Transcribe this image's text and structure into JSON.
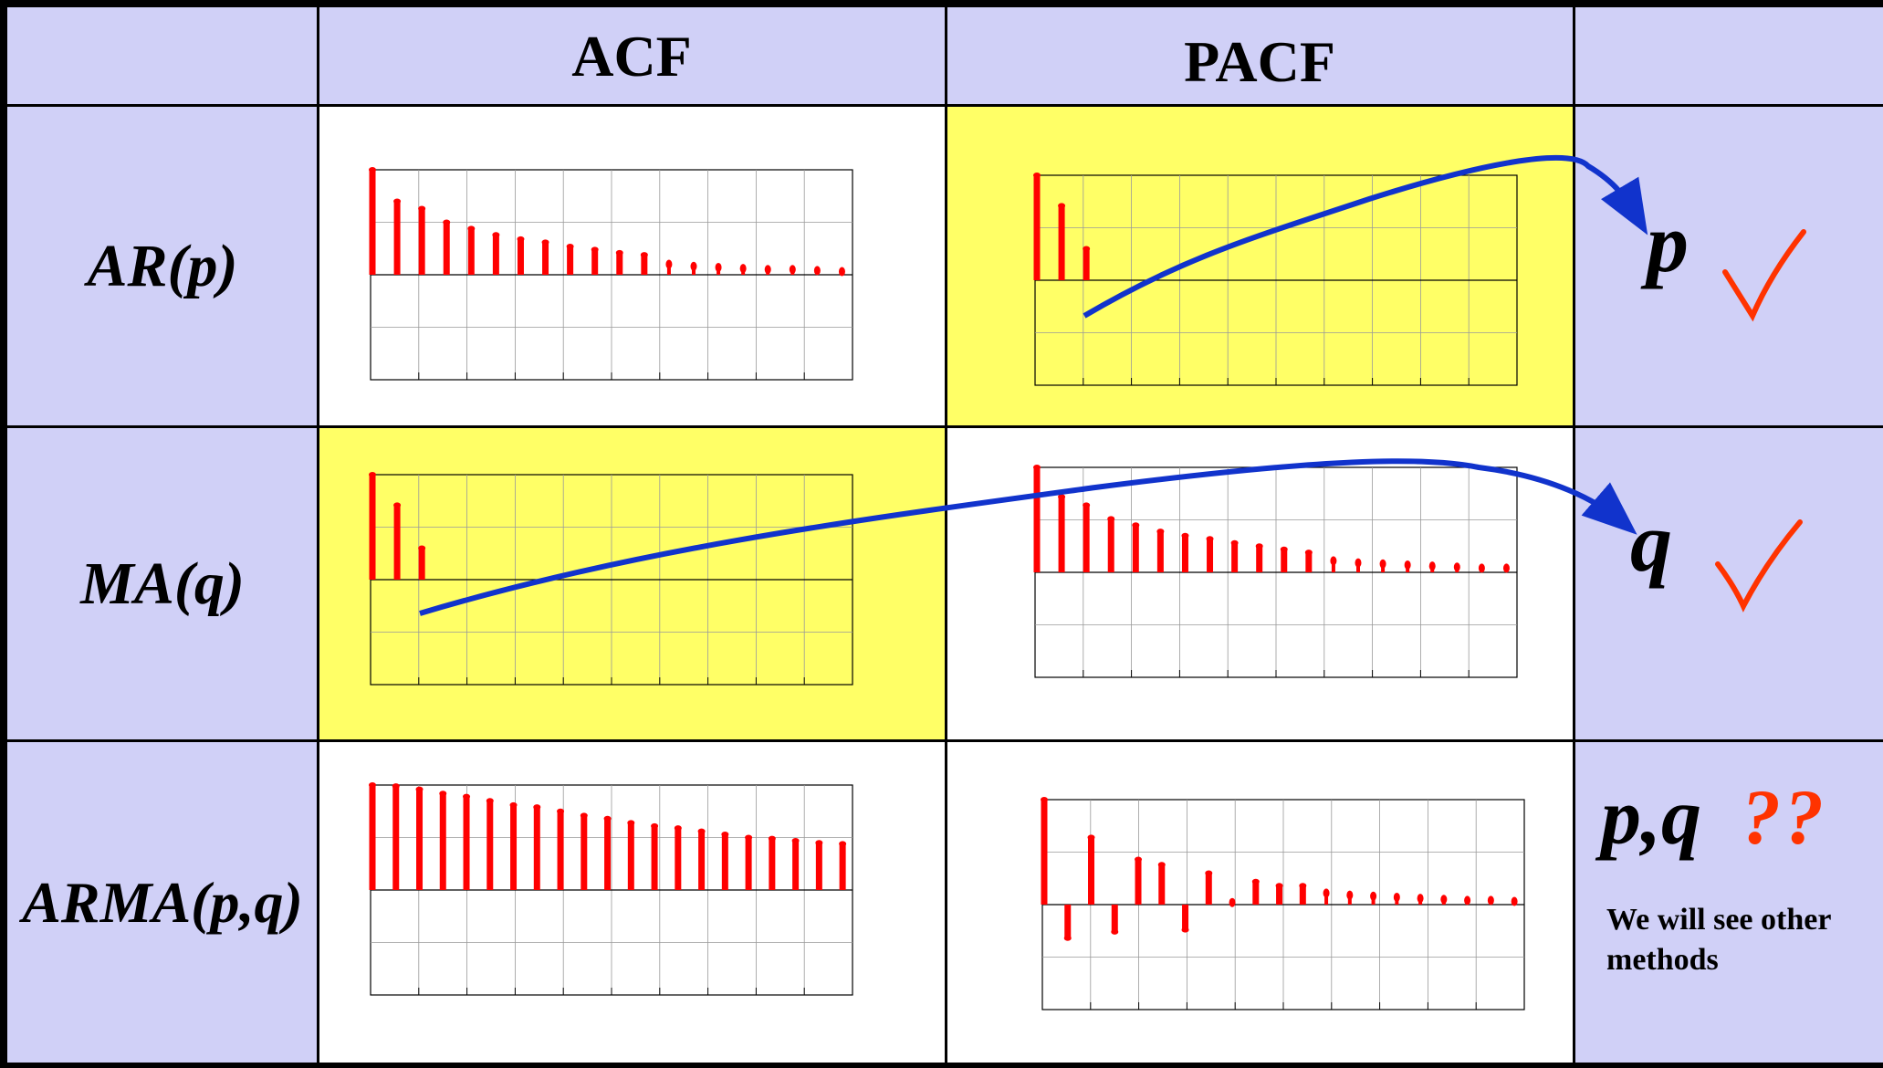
{
  "headers": {
    "acf": "ACF",
    "pacf": "PACF"
  },
  "rows": [
    {
      "label": "AR(p)"
    },
    {
      "label": "MA(q)"
    },
    {
      "label": "ARMA(p,q)"
    }
  ],
  "annotations": {
    "p": "p",
    "q": "q",
    "pq": "p,q",
    "question": "??",
    "note": "We will see other methods"
  },
  "colors": {
    "lavender": "#d0d0f7",
    "highlight": "#ffff66",
    "bar": "#ff0000",
    "arrow": "#1133cc",
    "check": "#ff3300"
  },
  "chart_data": [
    {
      "id": "ar-acf",
      "type": "bar",
      "values": [
        1.0,
        0.7,
        0.63,
        0.5,
        0.44,
        0.38,
        0.34,
        0.31,
        0.27,
        0.24,
        0.21,
        0.19,
        0.1,
        0.08,
        0.07,
        0.06,
        0.05,
        0.05,
        0.04,
        0.03
      ],
      "ylim": [
        -1,
        1
      ]
    },
    {
      "id": "ar-pacf",
      "type": "bar",
      "values": [
        1.0,
        0.71,
        0.3,
        0,
        0,
        0,
        0,
        0,
        0,
        0,
        0,
        0,
        0,
        0,
        0,
        0,
        0,
        0,
        0,
        0
      ],
      "ylim": [
        -1,
        1
      ]
    },
    {
      "id": "ma-acf",
      "type": "bar",
      "values": [
        1.0,
        0.71,
        0.3,
        0,
        0,
        0,
        0,
        0,
        0,
        0,
        0,
        0,
        0,
        0,
        0,
        0,
        0,
        0,
        0,
        0
      ],
      "ylim": [
        -1,
        1
      ]
    },
    {
      "id": "ma-pacf",
      "type": "bar",
      "values": [
        1.0,
        0.72,
        0.64,
        0.51,
        0.45,
        0.39,
        0.35,
        0.32,
        0.28,
        0.25,
        0.22,
        0.19,
        0.11,
        0.09,
        0.08,
        0.07,
        0.06,
        0.05,
        0.04,
        0.04
      ],
      "ylim": [
        -1,
        1
      ]
    },
    {
      "id": "arma-acf",
      "type": "bar",
      "values": [
        1.0,
        0.99,
        0.96,
        0.92,
        0.89,
        0.85,
        0.81,
        0.79,
        0.75,
        0.71,
        0.68,
        0.64,
        0.61,
        0.59,
        0.56,
        0.53,
        0.5,
        0.49,
        0.47,
        0.45,
        0.44
      ],
      "ylim": [
        -1,
        1
      ]
    },
    {
      "id": "arma-pacf",
      "type": "bar",
      "values": [
        1.0,
        -0.32,
        0.64,
        -0.26,
        0.43,
        0.38,
        -0.24,
        0.3,
        0.02,
        0.22,
        0.18,
        0.18,
        0.11,
        0.09,
        0.08,
        0.07,
        0.06,
        0.05,
        0.04,
        0.04,
        0.03
      ],
      "ylim": [
        -1,
        1
      ]
    }
  ]
}
